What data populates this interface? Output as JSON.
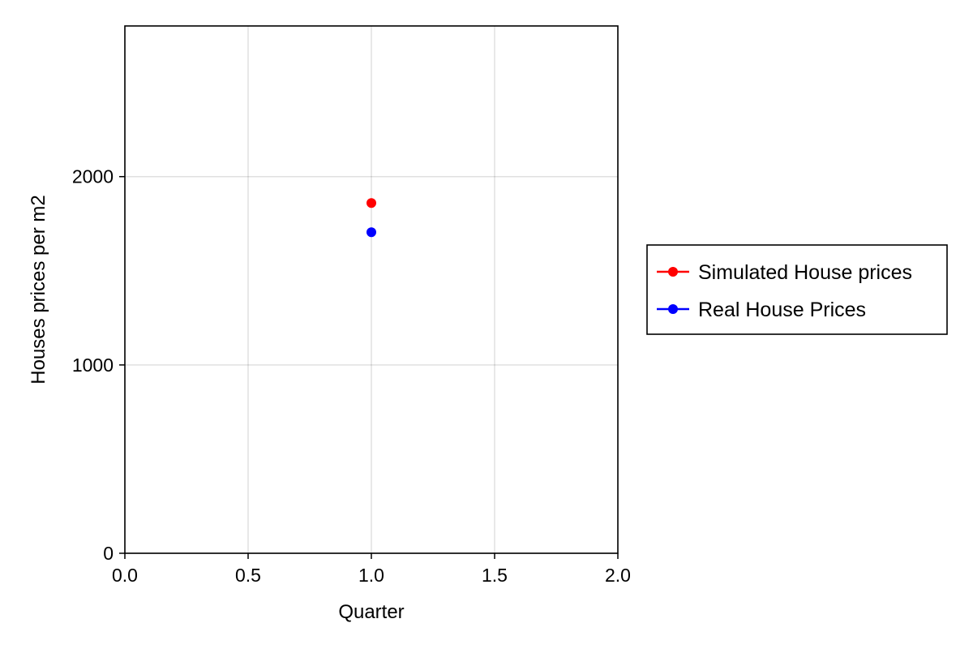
{
  "chart_data": {
    "type": "scatter",
    "title": "",
    "xlabel": "Quarter",
    "ylabel": "Houses prices per m2",
    "xlim": [
      0,
      2
    ],
    "ylim": [
      0,
      2800
    ],
    "xticks": [
      0,
      0.5,
      1,
      1.5,
      2
    ],
    "xtick_labels": [
      "0.0",
      "0.5",
      "1.0",
      "1.5",
      "2.0"
    ],
    "yticks": [
      0,
      1000,
      2000
    ],
    "ytick_labels": [
      "0",
      "1000",
      "2000"
    ],
    "grid": true,
    "legend_position": "right",
    "series": [
      {
        "name": "Simulated House prices",
        "color": "#ff0000",
        "marker": "circle",
        "x": [
          1
        ],
        "y": [
          1860
        ]
      },
      {
        "name": "Real House Prices",
        "color": "#0000ff",
        "marker": "circle",
        "x": [
          1
        ],
        "y": [
          1705
        ]
      }
    ]
  }
}
